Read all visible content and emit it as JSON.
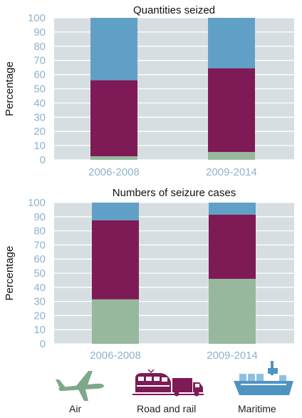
{
  "chart_data": [
    {
      "type": "bar",
      "stacked": true,
      "title": "Quantities seized",
      "ylabel": "Percentage",
      "xlabel": "",
      "ylim": [
        0,
        100
      ],
      "yticks": [
        0,
        10,
        20,
        30,
        40,
        50,
        60,
        70,
        80,
        90,
        100
      ],
      "categories": [
        "2006-2008",
        "2009-2014"
      ],
      "series": [
        {
          "name": "Maritime",
          "color": "#98b89d",
          "values": [
            2.5,
            5.5
          ]
        },
        {
          "name": "Road and rail",
          "color": "#7e1a55",
          "values": [
            53.5,
            59
          ]
        },
        {
          "name": "Air",
          "color": "#61a0c6",
          "values": [
            44,
            35.5
          ]
        }
      ],
      "grid": true
    },
    {
      "type": "bar",
      "stacked": true,
      "title": "Numbers of seizure cases",
      "ylabel": "Percentage",
      "xlabel": "",
      "ylim": [
        0,
        100
      ],
      "yticks": [
        0,
        10,
        20,
        30,
        40,
        50,
        60,
        70,
        80,
        90,
        100
      ],
      "categories": [
        "2006-2008",
        "2009-2014"
      ],
      "series": [
        {
          "name": "Maritime",
          "color": "#98b89d",
          "values": [
            31.5,
            46
          ]
        },
        {
          "name": "Road and rail",
          "color": "#7e1a55",
          "values": [
            56,
            45.5
          ]
        },
        {
          "name": "Air",
          "color": "#61a0c6",
          "values": [
            12.5,
            8.5
          ]
        }
      ],
      "grid": true
    }
  ],
  "legend": {
    "items": [
      {
        "label": "Air",
        "icon": "airplane-icon",
        "color": "#7fa88a"
      },
      {
        "label": "Road and rail",
        "icon": "train-truck-icon",
        "color": "#7e1a55"
      },
      {
        "label": "Maritime",
        "icon": "container-ship-icon",
        "color": "#4f93c3"
      }
    ]
  }
}
